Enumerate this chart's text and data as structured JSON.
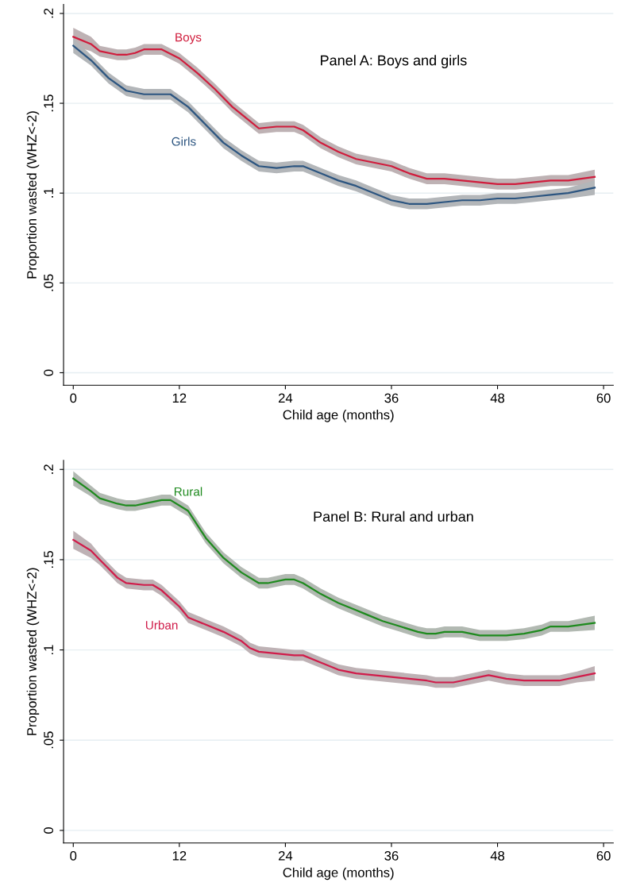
{
  "chart_data": [
    {
      "type": "line",
      "title": "Panel A: Boys and girls",
      "xlabel": "Child age (months)",
      "ylabel": "Proportion wasted (WHZ<-2)",
      "xlim": [
        -1.1,
        61.1
      ],
      "ylim": [
        -0.007,
        0.205
      ],
      "xticks": [
        0,
        12,
        24,
        36,
        48,
        60
      ],
      "yticks": [
        {
          "value": 0,
          "label": "0"
        },
        {
          "value": 0.05,
          "label": ".05"
        },
        {
          "value": 0.1,
          "label": ".1"
        },
        {
          "value": 0.15,
          "label": ".15"
        },
        {
          "value": 0.2,
          "label": ".2"
        }
      ],
      "grid": "y",
      "legend": false,
      "line_style": "solid",
      "marker": "none",
      "series": [
        {
          "name": "Boys",
          "color": "#d01c3c",
          "x": [
            0,
            2,
            3,
            5,
            6,
            7,
            8,
            10,
            12,
            14,
            16,
            18,
            20,
            21,
            23,
            25,
            26,
            28,
            30,
            32,
            34,
            36,
            38,
            40,
            42,
            44,
            46,
            48,
            50,
            52,
            54,
            56,
            59
          ],
          "values": [
            0.187,
            0.183,
            0.179,
            0.177,
            0.177,
            0.178,
            0.18,
            0.18,
            0.175,
            0.167,
            0.158,
            0.148,
            0.14,
            0.136,
            0.137,
            0.137,
            0.135,
            0.128,
            0.123,
            0.119,
            0.117,
            0.115,
            0.111,
            0.108,
            0.108,
            0.107,
            0.106,
            0.105,
            0.105,
            0.106,
            0.107,
            0.107,
            0.109
          ],
          "lower": [
            0.182,
            0.179,
            0.176,
            0.174,
            0.174,
            0.175,
            0.177,
            0.177,
            0.172,
            0.164,
            0.155,
            0.145,
            0.137,
            0.133,
            0.134,
            0.134,
            0.132,
            0.125,
            0.12,
            0.116,
            0.114,
            0.112,
            0.108,
            0.105,
            0.105,
            0.104,
            0.103,
            0.102,
            0.102,
            0.103,
            0.104,
            0.104,
            0.105
          ],
          "upper": [
            0.192,
            0.187,
            0.182,
            0.18,
            0.18,
            0.181,
            0.183,
            0.183,
            0.178,
            0.17,
            0.161,
            0.151,
            0.143,
            0.139,
            0.14,
            0.14,
            0.138,
            0.131,
            0.126,
            0.122,
            0.12,
            0.118,
            0.114,
            0.111,
            0.111,
            0.11,
            0.109,
            0.108,
            0.108,
            0.109,
            0.11,
            0.11,
            0.113
          ]
        },
        {
          "name": "Girls",
          "color": "#2c5580",
          "x": [
            0,
            2,
            4,
            6,
            8,
            10,
            11,
            13,
            15,
            17,
            19,
            21,
            23,
            25,
            26,
            28,
            30,
            32,
            34,
            36,
            38,
            40,
            42,
            44,
            46,
            48,
            50,
            52,
            54,
            56,
            59
          ],
          "values": [
            0.182,
            0.174,
            0.164,
            0.157,
            0.155,
            0.155,
            0.155,
            0.148,
            0.138,
            0.128,
            0.121,
            0.115,
            0.114,
            0.115,
            0.115,
            0.111,
            0.107,
            0.104,
            0.1,
            0.096,
            0.094,
            0.094,
            0.095,
            0.096,
            0.096,
            0.097,
            0.097,
            0.098,
            0.099,
            0.1,
            0.103
          ],
          "lower": [
            0.178,
            0.171,
            0.161,
            0.154,
            0.152,
            0.152,
            0.152,
            0.145,
            0.135,
            0.125,
            0.118,
            0.112,
            0.111,
            0.112,
            0.112,
            0.108,
            0.104,
            0.101,
            0.097,
            0.093,
            0.091,
            0.091,
            0.092,
            0.093,
            0.093,
            0.094,
            0.094,
            0.095,
            0.096,
            0.097,
            0.099
          ],
          "upper": [
            0.186,
            0.177,
            0.167,
            0.16,
            0.158,
            0.158,
            0.158,
            0.151,
            0.141,
            0.131,
            0.124,
            0.118,
            0.117,
            0.118,
            0.118,
            0.114,
            0.11,
            0.107,
            0.103,
            0.099,
            0.097,
            0.097,
            0.098,
            0.099,
            0.099,
            0.1,
            0.1,
            0.101,
            0.102,
            0.103,
            0.107
          ]
        }
      ]
    },
    {
      "type": "line",
      "title": "Panel B: Rural and urban",
      "xlabel": "Child age (months)",
      "ylabel": "Proportion wasted (WHZ<-2)",
      "xlim": [
        -1.1,
        61.1
      ],
      "ylim": [
        -0.007,
        0.205
      ],
      "xticks": [
        0,
        12,
        24,
        36,
        48,
        60
      ],
      "yticks": [
        {
          "value": 0,
          "label": "0"
        },
        {
          "value": 0.05,
          "label": ".05"
        },
        {
          "value": 0.1,
          "label": ".1"
        },
        {
          "value": 0.15,
          "label": ".15"
        },
        {
          "value": 0.2,
          "label": ".2"
        }
      ],
      "grid": "y",
      "legend": false,
      "line_style": "solid",
      "marker": "none",
      "series": [
        {
          "name": "Rural",
          "color": "#1e8a1e",
          "x": [
            0,
            2,
            3,
            5,
            6,
            7,
            8,
            10,
            11,
            13,
            15,
            17,
            19,
            21,
            22,
            24,
            25,
            26,
            28,
            30,
            32,
            33,
            35,
            37,
            39,
            40,
            41,
            42,
            44,
            46,
            48,
            49,
            51,
            53,
            54,
            56,
            59
          ],
          "values": [
            0.195,
            0.188,
            0.184,
            0.181,
            0.18,
            0.18,
            0.181,
            0.183,
            0.183,
            0.177,
            0.162,
            0.151,
            0.143,
            0.137,
            0.137,
            0.139,
            0.139,
            0.137,
            0.131,
            0.126,
            0.122,
            0.12,
            0.116,
            0.113,
            0.11,
            0.109,
            0.109,
            0.11,
            0.11,
            0.108,
            0.108,
            0.108,
            0.109,
            0.111,
            0.113,
            0.113,
            0.115
          ],
          "lower": [
            0.191,
            0.185,
            0.181,
            0.178,
            0.177,
            0.177,
            0.178,
            0.18,
            0.18,
            0.174,
            0.159,
            0.148,
            0.14,
            0.134,
            0.134,
            0.136,
            0.136,
            0.134,
            0.128,
            0.123,
            0.119,
            0.117,
            0.113,
            0.11,
            0.107,
            0.106,
            0.106,
            0.107,
            0.107,
            0.105,
            0.105,
            0.105,
            0.106,
            0.108,
            0.11,
            0.11,
            0.111
          ],
          "upper": [
            0.199,
            0.191,
            0.187,
            0.184,
            0.183,
            0.183,
            0.184,
            0.186,
            0.186,
            0.18,
            0.165,
            0.154,
            0.146,
            0.14,
            0.14,
            0.142,
            0.142,
            0.14,
            0.134,
            0.129,
            0.125,
            0.123,
            0.119,
            0.116,
            0.113,
            0.112,
            0.112,
            0.113,
            0.113,
            0.111,
            0.111,
            0.111,
            0.112,
            0.114,
            0.116,
            0.116,
            0.119
          ]
        },
        {
          "name": "Urban",
          "color": "#d01c4a",
          "x": [
            0,
            2,
            3,
            4,
            5,
            6,
            8,
            9,
            10,
            12,
            13,
            15,
            17,
            19,
            20,
            21,
            23,
            25,
            26,
            28,
            30,
            32,
            34,
            36,
            38,
            40,
            41,
            43,
            44,
            45,
            47,
            49,
            51,
            53,
            55,
            57,
            59
          ],
          "values": [
            0.161,
            0.155,
            0.15,
            0.145,
            0.14,
            0.137,
            0.136,
            0.136,
            0.133,
            0.124,
            0.118,
            0.114,
            0.11,
            0.105,
            0.101,
            0.099,
            0.098,
            0.097,
            0.097,
            0.093,
            0.089,
            0.087,
            0.086,
            0.085,
            0.084,
            0.083,
            0.082,
            0.082,
            0.083,
            0.084,
            0.086,
            0.084,
            0.083,
            0.083,
            0.083,
            0.085,
            0.087
          ],
          "lower": [
            0.156,
            0.151,
            0.147,
            0.142,
            0.137,
            0.134,
            0.133,
            0.133,
            0.13,
            0.121,
            0.115,
            0.111,
            0.107,
            0.102,
            0.098,
            0.096,
            0.095,
            0.094,
            0.094,
            0.09,
            0.086,
            0.084,
            0.083,
            0.082,
            0.081,
            0.08,
            0.079,
            0.079,
            0.08,
            0.081,
            0.083,
            0.081,
            0.08,
            0.08,
            0.08,
            0.082,
            0.083
          ],
          "upper": [
            0.166,
            0.159,
            0.153,
            0.148,
            0.143,
            0.14,
            0.139,
            0.139,
            0.136,
            0.127,
            0.121,
            0.117,
            0.113,
            0.108,
            0.104,
            0.102,
            0.101,
            0.1,
            0.1,
            0.096,
            0.092,
            0.09,
            0.089,
            0.088,
            0.087,
            0.086,
            0.085,
            0.085,
            0.086,
            0.087,
            0.089,
            0.087,
            0.086,
            0.086,
            0.086,
            0.088,
            0.091
          ]
        }
      ]
    }
  ]
}
